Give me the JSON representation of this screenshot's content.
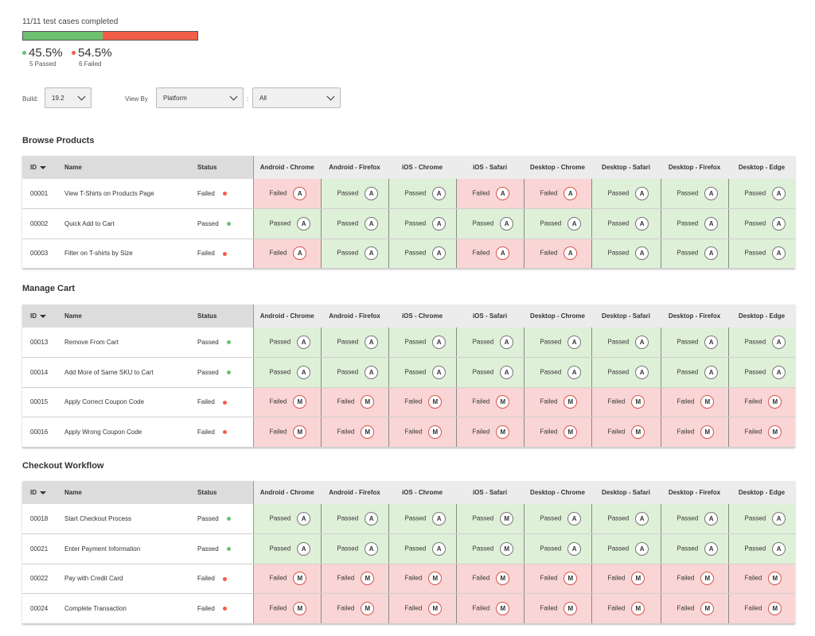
{
  "summary": {
    "completed_text": "11/11 test cases completed",
    "passed_percent_value": 45.5,
    "passed_percent": "45.5%",
    "passed_label": "5 Passed",
    "failed_percent": "54.5%",
    "failed_label": "6 Failed",
    "colors": {
      "passed": "#6cc070",
      "failed": "#f25e47"
    }
  },
  "filters": {
    "build_label": "Build:",
    "build_value": "19.2",
    "viewby_label": "View By",
    "viewby_value": "Platform",
    "separator": ":",
    "platform_value": "All"
  },
  "columns": {
    "id": "ID",
    "name": "Name",
    "status": "Status",
    "platforms": [
      "Android - Chrome",
      "Android - Firefox",
      "iOS - Chrome",
      "iOS - Safari",
      "Desktop - Chrome",
      "Desktop - Safari",
      "Desktop - Firefox",
      "Desktop - Edge"
    ]
  },
  "sections": [
    {
      "title": "Browse Products",
      "rows": [
        {
          "id": "00001",
          "name": "View T-Shirts on Products Page",
          "status": "Failed",
          "results": [
            [
              "Failed",
              "A"
            ],
            [
              "Passed",
              "A"
            ],
            [
              "Passed",
              "A"
            ],
            [
              "Failed",
              "A"
            ],
            [
              "Failed",
              "A"
            ],
            [
              "Passed",
              "A"
            ],
            [
              "Passed",
              "A"
            ],
            [
              "Passed",
              "A"
            ]
          ]
        },
        {
          "id": "00002",
          "name": "Quick Add to Cart",
          "status": "Passed",
          "results": [
            [
              "Passed",
              "A"
            ],
            [
              "Passed",
              "A"
            ],
            [
              "Passed",
              "A"
            ],
            [
              "Passed",
              "A"
            ],
            [
              "Passed",
              "A"
            ],
            [
              "Passed",
              "A"
            ],
            [
              "Passed",
              "A"
            ],
            [
              "Passed",
              "A"
            ]
          ]
        },
        {
          "id": "00003",
          "name": "Filter on T-shirts by Size",
          "status": "Failed",
          "results": [
            [
              "Failed",
              "A"
            ],
            [
              "Passed",
              "A"
            ],
            [
              "Passed",
              "A"
            ],
            [
              "Failed",
              "A"
            ],
            [
              "Failed",
              "A"
            ],
            [
              "Passed",
              "A"
            ],
            [
              "Passed",
              "A"
            ],
            [
              "Passed",
              "A"
            ]
          ]
        }
      ]
    },
    {
      "title": "Manage Cart",
      "rows": [
        {
          "id": "00013",
          "name": "Remove From Cart",
          "status": "Passed",
          "results": [
            [
              "Passed",
              "A"
            ],
            [
              "Passed",
              "A"
            ],
            [
              "Passed",
              "A"
            ],
            [
              "Passed",
              "A"
            ],
            [
              "Passed",
              "A"
            ],
            [
              "Passed",
              "A"
            ],
            [
              "Passed",
              "A"
            ],
            [
              "Passed",
              "A"
            ]
          ]
        },
        {
          "id": "00014",
          "name": "Add More of Same SKU to Cart",
          "status": "Passed",
          "results": [
            [
              "Passed",
              "A"
            ],
            [
              "Passed",
              "A"
            ],
            [
              "Passed",
              "A"
            ],
            [
              "Passed",
              "A"
            ],
            [
              "Passed",
              "A"
            ],
            [
              "Passed",
              "A"
            ],
            [
              "Passed",
              "A"
            ],
            [
              "Passed",
              "A"
            ]
          ]
        },
        {
          "id": "00015",
          "name": "Apply Correct Coupon Code",
          "status": "Failed",
          "results": [
            [
              "Failed",
              "M"
            ],
            [
              "Failed",
              "M"
            ],
            [
              "Failed",
              "M"
            ],
            [
              "Failed",
              "M"
            ],
            [
              "Failed",
              "M"
            ],
            [
              "Failed",
              "M"
            ],
            [
              "Failed",
              "M"
            ],
            [
              "Failed",
              "M"
            ]
          ]
        },
        {
          "id": "00016",
          "name": "Apply Wrong Coupon Code",
          "status": "Failed",
          "results": [
            [
              "Failed",
              "M"
            ],
            [
              "Failed",
              "M"
            ],
            [
              "Failed",
              "M"
            ],
            [
              "Failed",
              "M"
            ],
            [
              "Failed",
              "M"
            ],
            [
              "Failed",
              "M"
            ],
            [
              "Failed",
              "M"
            ],
            [
              "Failed",
              "M"
            ]
          ]
        }
      ]
    },
    {
      "title": "Checkout Workflow",
      "rows": [
        {
          "id": "00018",
          "name": "Start Checkout Process",
          "status": "Passed",
          "results": [
            [
              "Passed",
              "A"
            ],
            [
              "Passed",
              "A"
            ],
            [
              "Passed",
              "A"
            ],
            [
              "Passed",
              "M"
            ],
            [
              "Passed",
              "A"
            ],
            [
              "Passed",
              "A"
            ],
            [
              "Passed",
              "A"
            ],
            [
              "Passed",
              "A"
            ]
          ]
        },
        {
          "id": "00021",
          "name": "Enter Payment Information",
          "status": "Passed",
          "results": [
            [
              "Passed",
              "A"
            ],
            [
              "Passed",
              "A"
            ],
            [
              "Passed",
              "A"
            ],
            [
              "Passed",
              "M"
            ],
            [
              "Passed",
              "A"
            ],
            [
              "Passed",
              "A"
            ],
            [
              "Passed",
              "A"
            ],
            [
              "Passed",
              "A"
            ]
          ]
        },
        {
          "id": "00022",
          "name": "Pay with Credit Card",
          "status": "Failed",
          "results": [
            [
              "Failed",
              "M"
            ],
            [
              "Failed",
              "M"
            ],
            [
              "Failed",
              "M"
            ],
            [
              "Failed",
              "M"
            ],
            [
              "Failed",
              "M"
            ],
            [
              "Failed",
              "M"
            ],
            [
              "Failed",
              "M"
            ],
            [
              "Failed",
              "M"
            ]
          ]
        },
        {
          "id": "00024",
          "name": "Complete Transaction",
          "status": "Failed",
          "results": [
            [
              "Failed",
              "M"
            ],
            [
              "Failed",
              "M"
            ],
            [
              "Failed",
              "M"
            ],
            [
              "Failed",
              "M"
            ],
            [
              "Failed",
              "M"
            ],
            [
              "Failed",
              "M"
            ],
            [
              "Failed",
              "M"
            ],
            [
              "Failed",
              "M"
            ]
          ]
        }
      ]
    }
  ]
}
